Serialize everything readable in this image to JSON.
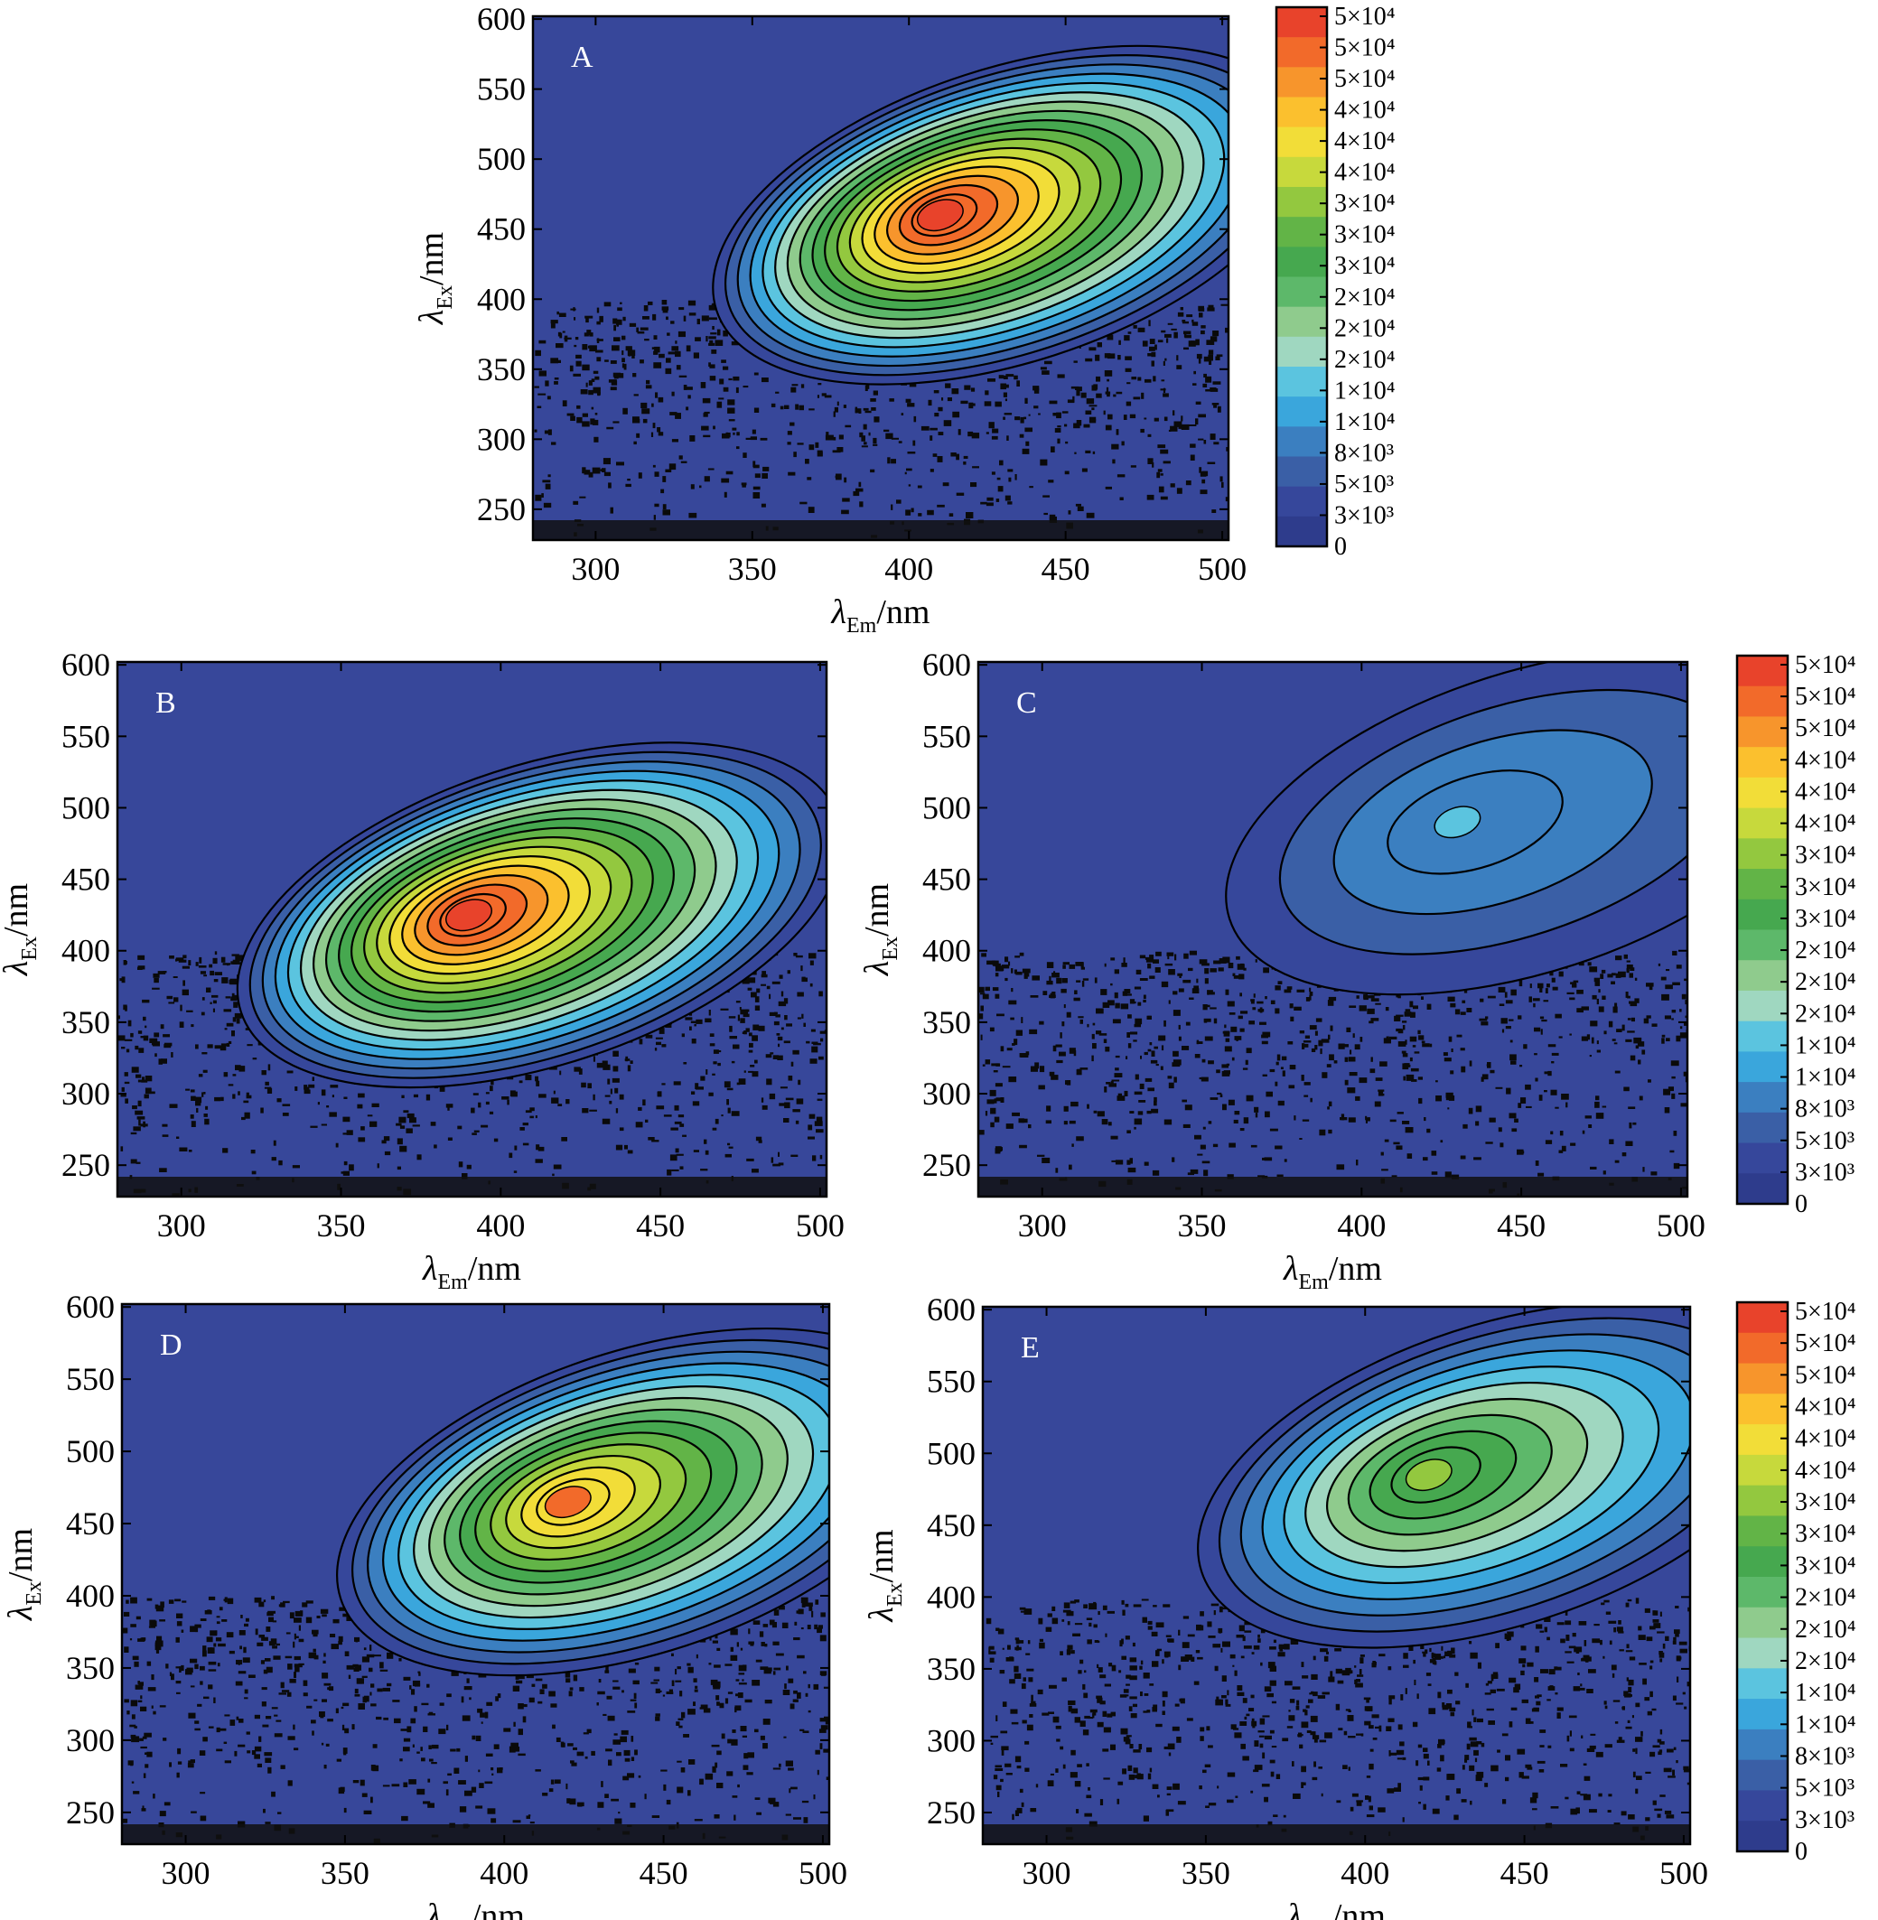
{
  "chart_data": {
    "type": "heatmap",
    "description_ylabel": "",
    "axis_labels": {
      "x_symbol": "λ",
      "x_subscript": "Em",
      "x_unit": "/nm",
      "y_symbol": "λ",
      "y_subscript": "Ex",
      "y_unit": "/nm"
    },
    "x_ticks": [
      300,
      350,
      400,
      450,
      500
    ],
    "y_ticks": [
      250,
      300,
      350,
      400,
      450,
      500,
      550,
      600
    ],
    "xlim": [
      280,
      502
    ],
    "ylim": [
      228,
      602
    ],
    "colorbar_labels": [
      "5×10⁴",
      "5×10⁴",
      "5×10⁴",
      "4×10⁴",
      "4×10⁴",
      "4×10⁴",
      "3×10⁴",
      "3×10⁴",
      "3×10⁴",
      "2×10⁴",
      "2×10⁴",
      "2×10⁴",
      "1×10⁴",
      "1×10⁴",
      "8×10³",
      "5×10³",
      "3×10³",
      "0"
    ],
    "colorbar_colors": [
      "#e8432b",
      "#f26a2a",
      "#f7952c",
      "#fbc02e",
      "#f2dd38",
      "#c7d93c",
      "#93c83f",
      "#62b447",
      "#46a84f",
      "#5db86a",
      "#8fcb8d",
      "#9fd7c0",
      "#5bc4df",
      "#3aa6dc",
      "#3b7fc0",
      "#3a5fa6",
      "#36479b",
      "#2e3c8c"
    ],
    "background_color": "#37479a",
    "panels": [
      {
        "label": "A",
        "peak_em": 410,
        "peak_ex": 460,
        "max_intensity": 50000,
        "peak_color": "#e8432b"
      },
      {
        "label": "B",
        "peak_em": 390,
        "peak_ex": 425,
        "max_intensity": 50000,
        "peak_color": "#e8432b"
      },
      {
        "label": "C",
        "peak_em": 430,
        "peak_ex": 490,
        "max_intensity": 12000,
        "peak_color": "#5bc4df"
      },
      {
        "label": "D",
        "peak_em": 420,
        "peak_ex": 465,
        "max_intensity": 42000,
        "peak_color": "#f26a2a"
      },
      {
        "label": "E",
        "peak_em": 420,
        "peak_ex": 485,
        "max_intensity": 30000,
        "peak_color": "#93c83f"
      }
    ]
  }
}
